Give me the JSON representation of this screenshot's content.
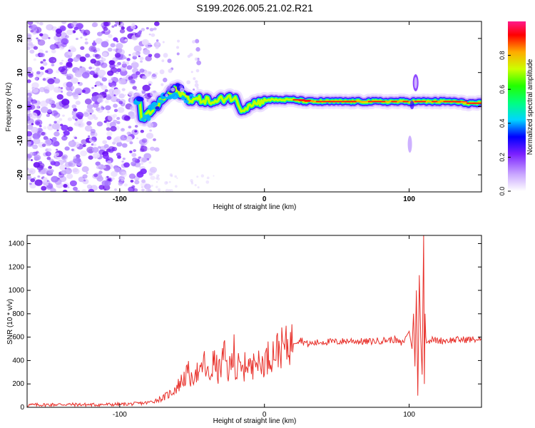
{
  "title": "S199.2026.005.21.02.R21",
  "chart_data": [
    {
      "type": "heatmap",
      "xlabel": "Height of straight line (km)",
      "ylabel": "Frequency (Hz)",
      "xlim": [
        -164,
        150
      ],
      "ylim": [
        -25,
        25
      ],
      "x_ticks": [
        -100,
        0,
        100
      ],
      "y_ticks": [
        20,
        10,
        0,
        -10,
        -20
      ],
      "x_tick_labels": [
        "-100",
        "0",
        "100"
      ],
      "y_tick_labels": [
        "20",
        "10",
        "0",
        "-10",
        "-20"
      ],
      "colorbar": {
        "label": "Normalized spectral amplitude",
        "range": [
          0,
          1
        ],
        "ticks": [
          0.0,
          0.2,
          0.4,
          0.6,
          0.8
        ],
        "tick_labels": [
          "0.0",
          "0.2",
          "0.4",
          "0.6",
          "0.8"
        ]
      },
      "ridge_trace": {
        "x": [
          -85,
          -80,
          -75,
          -70,
          -65,
          -60,
          -55,
          -50,
          -45,
          -40,
          -35,
          -30,
          -25,
          -20,
          -15,
          -10,
          -5,
          0,
          10,
          20,
          30,
          40,
          60,
          80,
          100,
          110,
          120,
          130,
          140,
          150
        ],
        "y": [
          -4,
          -2,
          0,
          2,
          4,
          5,
          3,
          2,
          2,
          2,
          1,
          2,
          3,
          2,
          -1,
          1,
          1,
          2,
          2,
          2,
          1.5,
          1.5,
          1.5,
          1.5,
          1.5,
          1.5,
          1.5,
          1.5,
          1,
          1
        ]
      }
    },
    {
      "type": "line",
      "xlabel": "Height of straight line (km)",
      "ylabel": "SNR (10 * v/v)",
      "xlim": [
        -164,
        150
      ],
      "ylim": [
        0,
        1470
      ],
      "x_ticks": [
        -100,
        0,
        100
      ],
      "y_ticks": [
        0,
        200,
        400,
        600,
        800,
        1000,
        1200,
        1400
      ],
      "x_tick_labels": [
        "-100",
        "0",
        "100"
      ],
      "y_tick_labels": [
        "0",
        "200",
        "400",
        "600",
        "800",
        "1000",
        "1200",
        "1400"
      ],
      "series": [
        {
          "name": "SNR",
          "color": "#e8302a",
          "x": [
            -164,
            -150,
            -140,
            -120,
            -100,
            -90,
            -80,
            -75,
            -70,
            -65,
            -60,
            -55,
            -52,
            -50,
            -48,
            -45,
            -42,
            -40,
            -38,
            -35,
            -32,
            -30,
            -28,
            -25,
            -22,
            -21,
            -20,
            -18,
            -15,
            -12,
            -10,
            -8,
            -7,
            -5,
            -3,
            0,
            5,
            10,
            15,
            20,
            25,
            30,
            40,
            50,
            60,
            70,
            80,
            90,
            95,
            100,
            102,
            103,
            104,
            105,
            106,
            107,
            108,
            109,
            110,
            110.5,
            111,
            111.5,
            112,
            115,
            120,
            130,
            140,
            150
          ],
          "y": [
            20,
            22,
            25,
            22,
            25,
            30,
            40,
            60,
            80,
            120,
            180,
            260,
            300,
            200,
            350,
            250,
            400,
            300,
            250,
            400,
            300,
            350,
            450,
            300,
            400,
            680,
            250,
            350,
            300,
            400,
            350,
            300,
            620,
            380,
            350,
            400,
            460,
            500,
            520,
            560,
            580,
            540,
            560,
            560,
            570,
            560,
            570,
            580,
            540,
            650,
            500,
            800,
            350,
            1000,
            100,
            1130,
            600,
            280,
            1470,
            200,
            800,
            600,
            550,
            580,
            570,
            575,
            580,
            580
          ]
        }
      ]
    }
  ]
}
